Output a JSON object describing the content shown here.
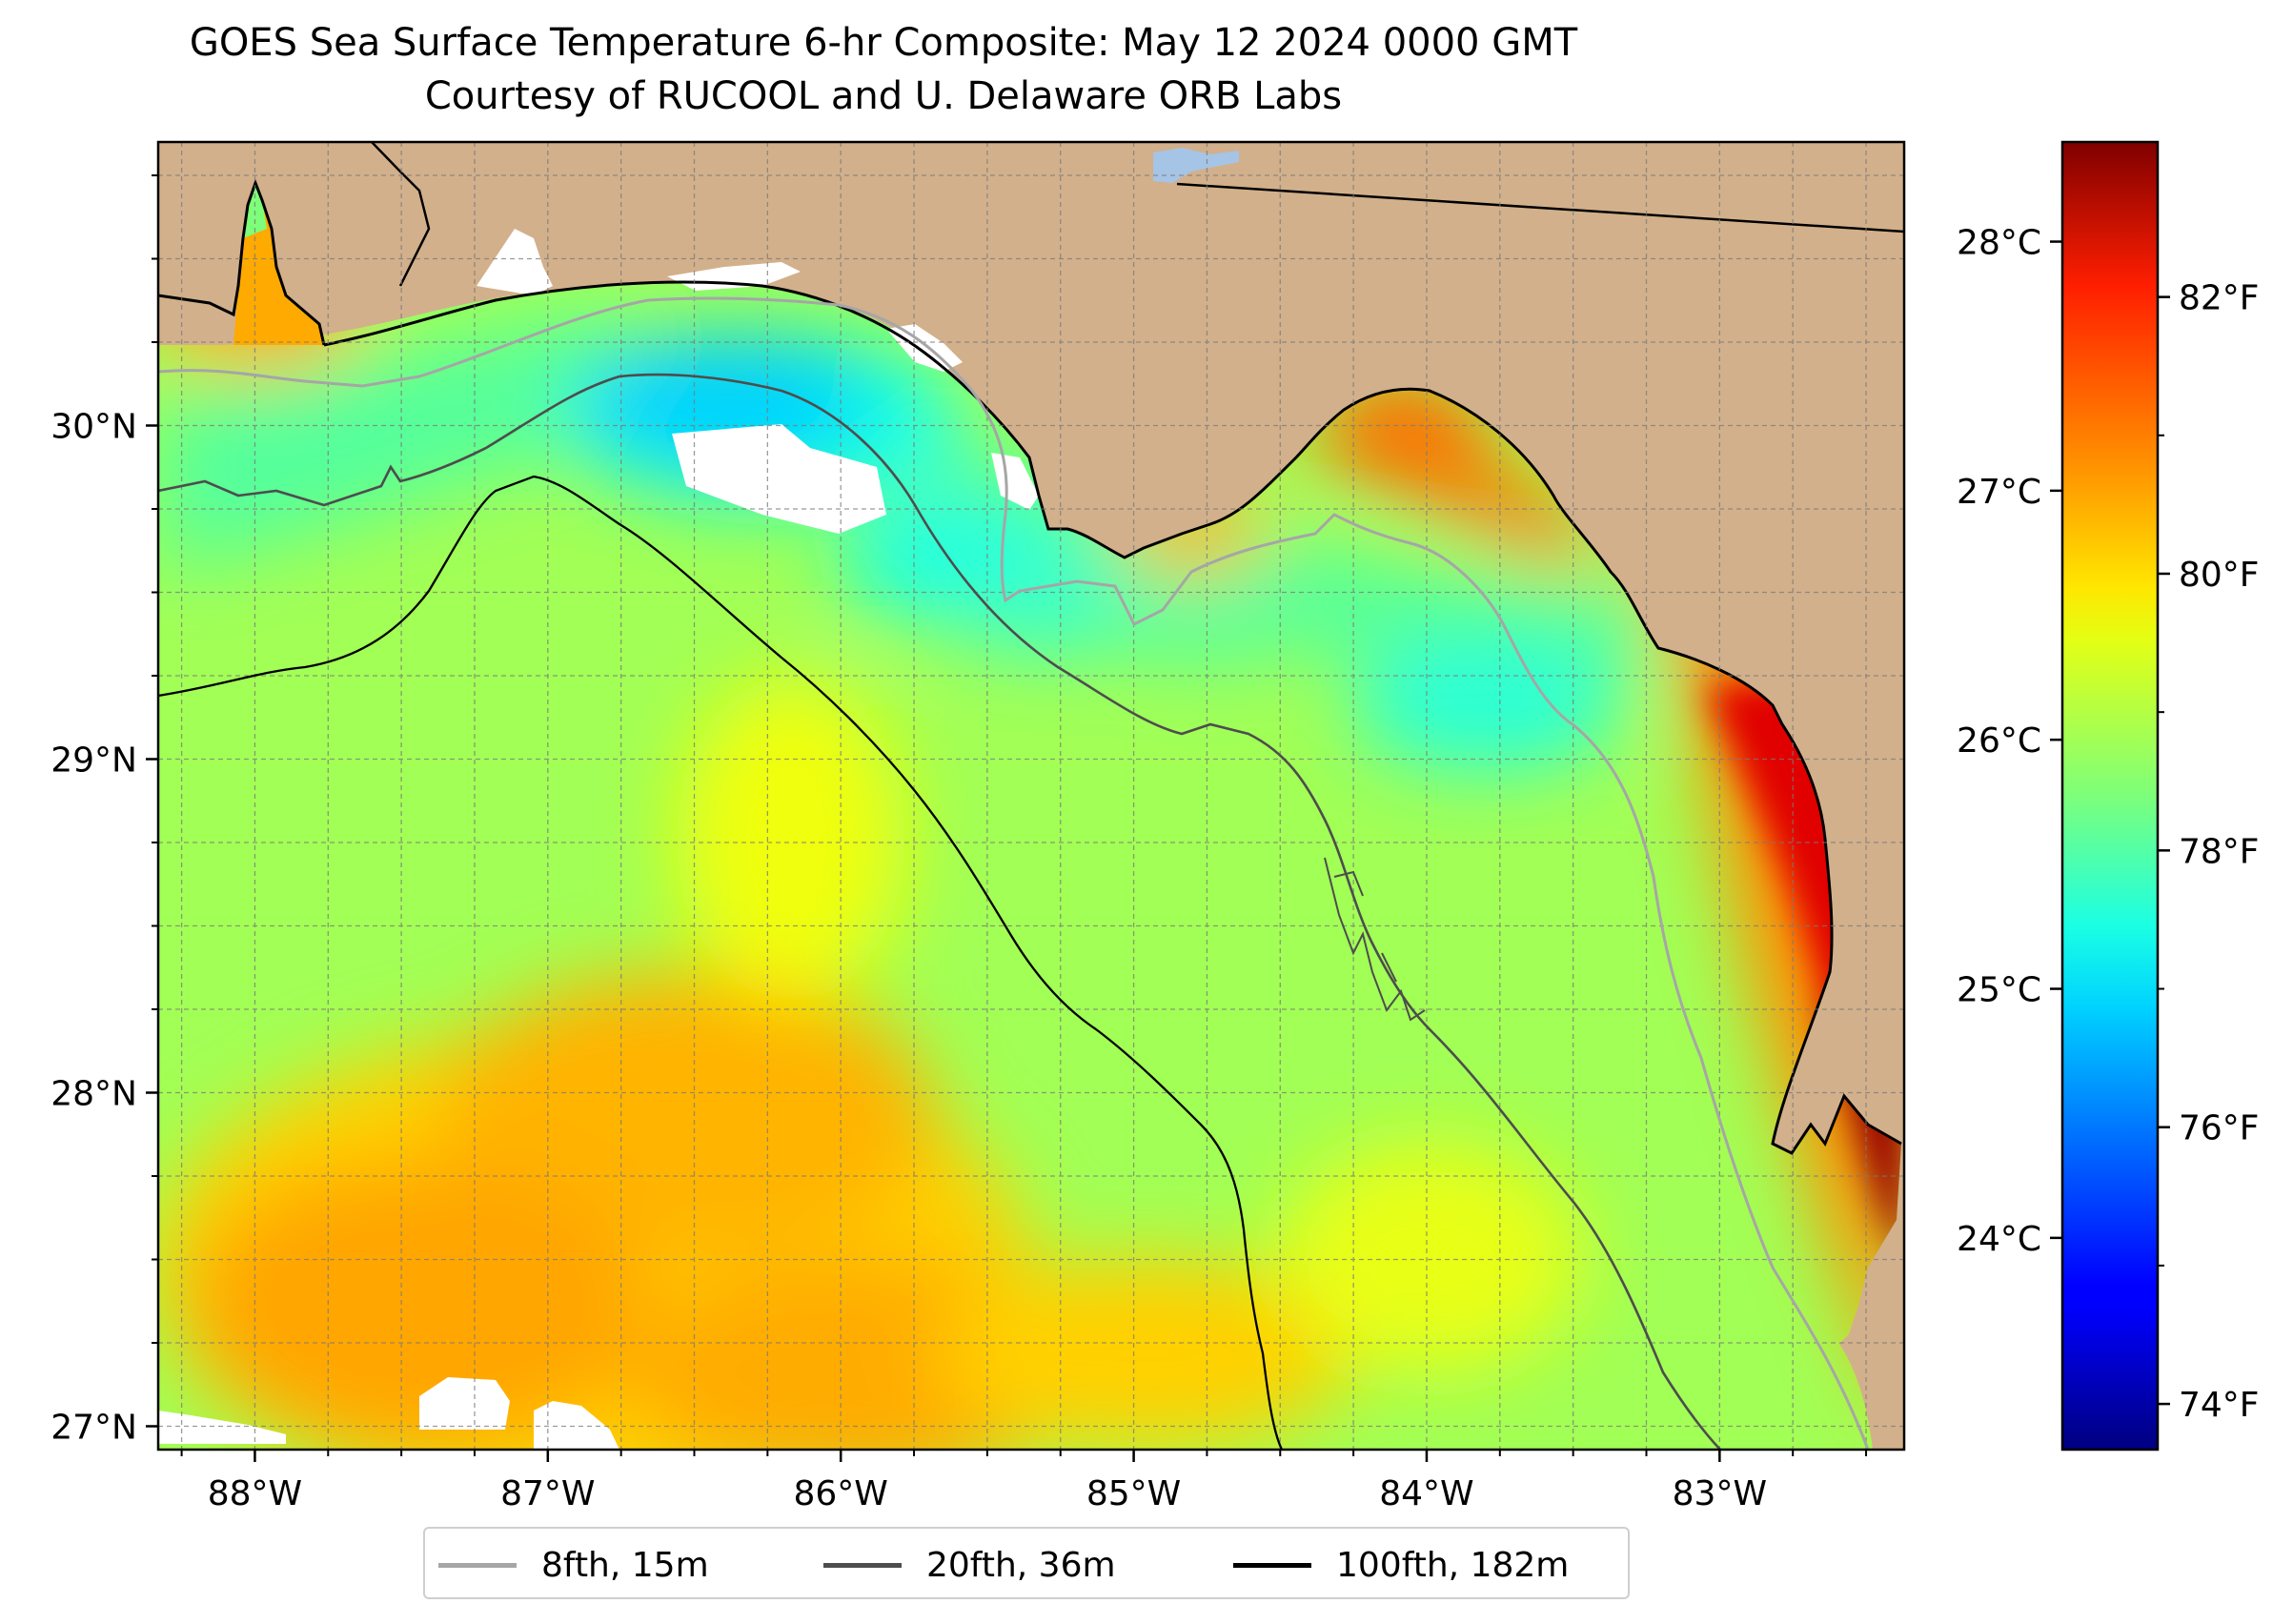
{
  "title": {
    "line1": "GOES Sea Surface Temperature 6-hr Composite: May 12 2024 0000 GMT",
    "line2": "Courtesy of RUCOOL and U. Delaware ORB Labs"
  },
  "map": {
    "extent": {
      "lon": [
        -88.33,
        -82.37
      ],
      "lat": [
        26.93,
        30.85
      ]
    },
    "lon_ticks": [
      {
        "value": -88,
        "label": "88°W"
      },
      {
        "value": -87,
        "label": "87°W"
      },
      {
        "value": -86,
        "label": "86°W"
      },
      {
        "value": -85,
        "label": "85°W"
      },
      {
        "value": -84,
        "label": "84°W"
      },
      {
        "value": -83,
        "label": "83°W"
      }
    ],
    "lat_ticks": [
      {
        "value": 27,
        "label": "27°N"
      },
      {
        "value": 28,
        "label": "28°N"
      },
      {
        "value": 29,
        "label": "29°N"
      },
      {
        "value": 30,
        "label": "30°N"
      }
    ],
    "minor_tick_step_deg": 0.25,
    "grid": "dashed",
    "colors": {
      "land": "#d2b08b",
      "coastline": "#000000",
      "no_data": "#ffffff",
      "lake": "#a6c4e6"
    }
  },
  "colorbar": {
    "colormap": "jet",
    "range_c": [
      23.15,
      28.4
    ],
    "celsius_ticks": [
      {
        "value": 24,
        "label": "24°C"
      },
      {
        "value": 25,
        "label": "25°C"
      },
      {
        "value": 26,
        "label": "26°C"
      },
      {
        "value": 27,
        "label": "27°C"
      },
      {
        "value": 28,
        "label": "28°C"
      }
    ],
    "fahrenheit_ticks": [
      {
        "value": 74,
        "label": "74°F"
      },
      {
        "value": 76,
        "label": "76°F"
      },
      {
        "value": 78,
        "label": "78°F"
      },
      {
        "value": 80,
        "label": "80°F"
      },
      {
        "value": 82,
        "label": "82°F"
      }
    ]
  },
  "legend": {
    "items": [
      {
        "label": "8fth, 15m",
        "color": "#a6a6a6"
      },
      {
        "label": "20fth, 36m",
        "color": "#4d4d4d"
      },
      {
        "label": "100fth, 182m",
        "color": "#000000"
      }
    ]
  }
}
